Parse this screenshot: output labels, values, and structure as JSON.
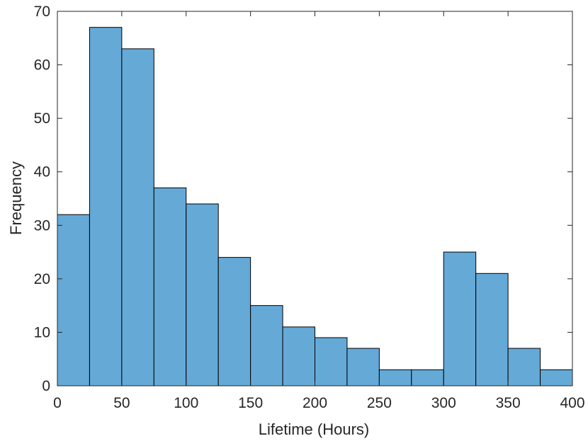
{
  "chart_data": {
    "type": "bar",
    "subtype": "histogram",
    "bin_edges": [
      0,
      25,
      50,
      75,
      100,
      125,
      150,
      175,
      200,
      225,
      250,
      275,
      300,
      325,
      350,
      375,
      400
    ],
    "values": [
      32,
      67,
      63,
      37,
      34,
      24,
      15,
      11,
      9,
      7,
      3,
      3,
      25,
      21,
      7,
      3
    ],
    "xlabel": "Lifetime (Hours)",
    "ylabel": "Frequency",
    "xlim": [
      0,
      400
    ],
    "ylim": [
      0,
      70
    ],
    "xticks": [
      0,
      50,
      100,
      150,
      200,
      250,
      300,
      350,
      400
    ],
    "yticks": [
      0,
      10,
      20,
      30,
      40,
      50,
      60,
      70
    ],
    "grid": false,
    "bar_color": "#65a9d7",
    "edge_color": "#000000"
  }
}
